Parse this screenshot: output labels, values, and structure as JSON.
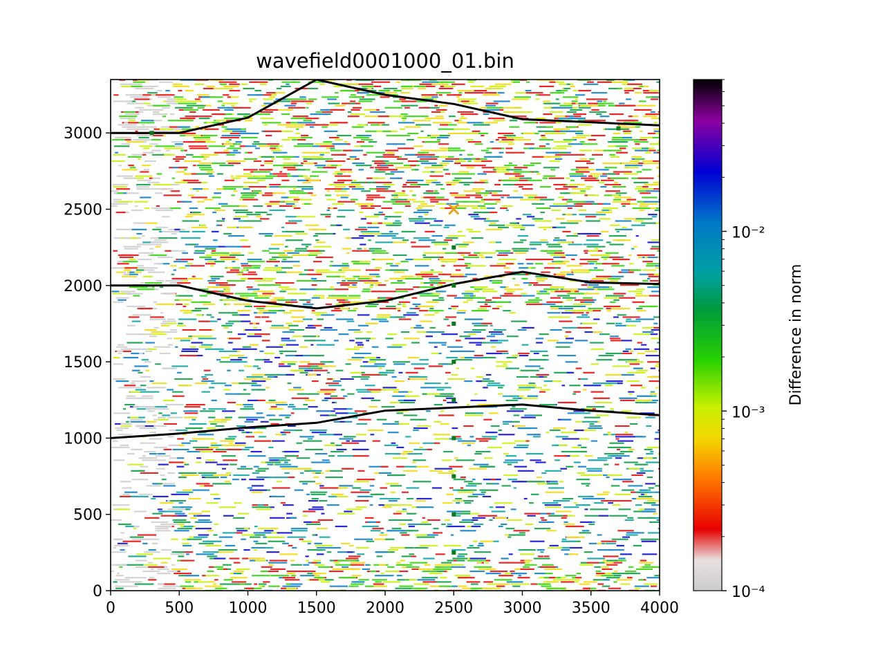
{
  "chart_data": {
    "type": "heatmap",
    "title": "wavefield0001000_01.bin",
    "xlabel": "",
    "ylabel": "",
    "xlim": [
      0,
      4000
    ],
    "ylim": [
      0,
      3350
    ],
    "x_ticks": [
      0,
      500,
      1000,
      1500,
      2000,
      2500,
      3000,
      3500,
      4000
    ],
    "y_ticks": [
      0,
      500,
      1000,
      1500,
      2000,
      2500,
      3000
    ],
    "grid": false,
    "colorbar": {
      "label": "Difference in norm",
      "scale": "log",
      "range": [
        0.0001,
        0.07
      ],
      "tick_labels": [
        "10⁻⁴",
        "10⁻³",
        "10⁻²"
      ],
      "tick_values": [
        0.0001,
        0.001,
        0.01
      ],
      "colormap": "nipy_spectral_r",
      "colors": [
        "#cccccc",
        "#e60000",
        "#ff7a00",
        "#f2d900",
        "#c8f000",
        "#28d200",
        "#009a3c",
        "#00a0a0",
        "#0078c8",
        "#0000d2",
        "#8c00a0",
        "#000000"
      ]
    },
    "interfaces": [
      {
        "points": [
          [
            0,
            3000
          ],
          [
            500,
            3000
          ],
          [
            1000,
            3100
          ],
          [
            1500,
            3350
          ],
          [
            2000,
            3250
          ],
          [
            2500,
            3190
          ],
          [
            3000,
            3090
          ],
          [
            3500,
            3070
          ],
          [
            4000,
            3050
          ]
        ]
      },
      {
        "points": [
          [
            0,
            2000
          ],
          [
            500,
            2000
          ],
          [
            1000,
            1900
          ],
          [
            1500,
            1850
          ],
          [
            2000,
            1900
          ],
          [
            2500,
            2010
          ],
          [
            3000,
            2090
          ],
          [
            3500,
            2020
          ],
          [
            4000,
            2010
          ]
        ]
      },
      {
        "points": [
          [
            0,
            1000
          ],
          [
            500,
            1030
          ],
          [
            1000,
            1070
          ],
          [
            1500,
            1100
          ],
          [
            2000,
            1180
          ],
          [
            2500,
            1200
          ],
          [
            3000,
            1220
          ],
          [
            3500,
            1180
          ],
          [
            4000,
            1150
          ]
        ]
      }
    ],
    "receivers": [
      {
        "x": 2500,
        "y": 2250
      },
      {
        "x": 2500,
        "y": 2000
      },
      {
        "x": 2500,
        "y": 1750
      },
      {
        "x": 2500,
        "y": 1500
      },
      {
        "x": 2500,
        "y": 1250
      },
      {
        "x": 2500,
        "y": 1000
      },
      {
        "x": 2500,
        "y": 750
      },
      {
        "x": 2500,
        "y": 500
      },
      {
        "x": 2500,
        "y": 250
      },
      {
        "x": 300,
        "y": 3000
      },
      {
        "x": 3700,
        "y": 3030
      }
    ],
    "source": {
      "x": 2500,
      "y": 2500,
      "marker": "x",
      "color": "#e8a020"
    }
  }
}
